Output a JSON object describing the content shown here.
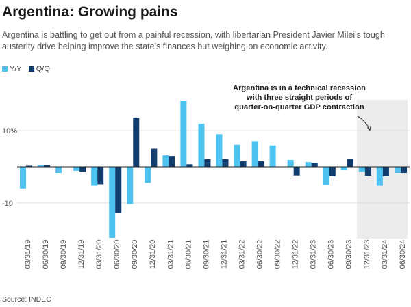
{
  "title": "Argentina: Growing pains",
  "subtitle": "Argentina is battling to get out from a painful recession, with libertarian President Javier Milei's tough austerity drive helping improve the state's finances but weighing on economic activity.",
  "source": "Source: INDEC",
  "colors": {
    "yy": "#4fc3f0",
    "qq": "#103c6e",
    "shade": "#ececec",
    "grid": "#dddddd",
    "zero": "#222222"
  },
  "chart_data": {
    "type": "bar",
    "title": "Argentina: Growing pains",
    "xlabel": "",
    "ylabel": "",
    "ylim": [
      -20,
      18
    ],
    "yticks": [
      10,
      -10
    ],
    "ytick_labels": [
      "10%",
      "-10"
    ],
    "categories": [
      "03/31/19",
      "06/30/19",
      "09/30/19",
      "12/31/19",
      "03/31/20",
      "06/30/20",
      "09/30/20",
      "12/31/20",
      "03/31/21",
      "06/30/21",
      "09/30/21",
      "12/31/21",
      "03/31/22",
      "06/30/22",
      "09/30/22",
      "12/31/22",
      "03/31/23",
      "06/30/23",
      "09/30/23",
      "12/31/23",
      "03/31/24",
      "06/30/24"
    ],
    "series": [
      {
        "name": "Y/Y",
        "values": [
          -6.0,
          0.5,
          -1.7,
          -1.1,
          -5.2,
          -19.6,
          -10.3,
          -4.4,
          3.2,
          18.3,
          11.9,
          9.0,
          6.1,
          7.1,
          5.9,
          1.9,
          1.3,
          -5.0,
          -0.8,
          -1.4,
          -5.2,
          -1.7
        ]
      },
      {
        "name": "Q/Q",
        "values": [
          0.3,
          0.5,
          0.0,
          -1.4,
          -4.8,
          -12.8,
          13.6,
          5.0,
          3.0,
          0.7,
          2.1,
          2.1,
          1.5,
          1.5,
          0.0,
          -2.4,
          1.1,
          -2.6,
          2.2,
          -2.5,
          -2.6,
          -1.7
        ]
      }
    ],
    "shaded_region": {
      "from": "12/31/23",
      "to": "06/30/24"
    },
    "annotation": {
      "lines": [
        "Argentina is in a technical recession",
        "with three straight periods of",
        "quarter-on-quarter GDP contraction"
      ]
    }
  }
}
